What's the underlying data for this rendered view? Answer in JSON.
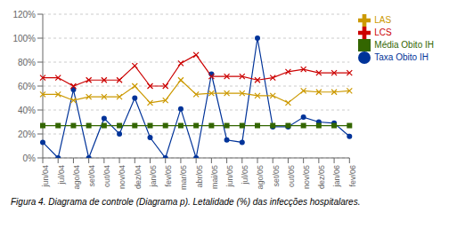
{
  "chart_data": {
    "type": "line",
    "caption": "Figura 4. Diagrama de controle (Diagrama p). Letalidade (%) das infecções hospitalares.",
    "categories": [
      "jun/04",
      "jul/04",
      "ago/04",
      "set/04",
      "out/04",
      "nov/04",
      "dez/04",
      "jan/05",
      "fev/05",
      "mar/05",
      "abr/05",
      "mai/05",
      "jun/05",
      "jul/05",
      "ago/05",
      "set/05",
      "out/05",
      "nov/05",
      "dez/05",
      "jan/06",
      "fev/06"
    ],
    "series": [
      {
        "name": "Taxa Obito IH",
        "color": "#003399",
        "marker": "circle",
        "values": [
          0.13,
          0.0,
          0.57,
          0.0,
          0.33,
          0.2,
          0.5,
          0.17,
          0.0,
          0.41,
          0.0,
          0.7,
          0.15,
          0.13,
          1.0,
          0.26,
          0.26,
          0.34,
          0.3,
          0.29,
          0.18
        ]
      },
      {
        "name": "Média Obito IH",
        "color": "#336600",
        "marker": "square",
        "values": [
          0.27,
          0.27,
          0.27,
          0.27,
          0.27,
          0.27,
          0.27,
          0.27,
          0.27,
          0.27,
          0.27,
          0.27,
          0.27,
          0.27,
          0.27,
          0.27,
          0.27,
          0.27,
          0.27,
          0.27,
          0.27
        ]
      },
      {
        "name": "LAS",
        "color": "#CC9900",
        "marker": "cross",
        "values": [
          0.53,
          0.53,
          0.48,
          0.51,
          0.51,
          0.51,
          0.6,
          0.46,
          0.48,
          0.65,
          0.53,
          0.54,
          0.54,
          0.54,
          0.52,
          0.52,
          0.46,
          0.56,
          0.55,
          0.55,
          0.56
        ]
      },
      {
        "name": "LCS",
        "color": "#CC0000",
        "marker": "cross",
        "values": [
          0.67,
          0.67,
          0.6,
          0.65,
          0.65,
          0.65,
          0.77,
          0.6,
          0.6,
          0.79,
          0.86,
          0.68,
          0.68,
          0.68,
          0.65,
          0.67,
          0.72,
          0.74,
          0.71,
          0.71,
          0.71
        ]
      }
    ],
    "ylim": [
      0.0,
      1.2
    ],
    "yticks": [
      {
        "value": 0.0,
        "label": "0%"
      },
      {
        "value": 0.2,
        "label": "20%"
      },
      {
        "value": 0.4,
        "label": "40%"
      },
      {
        "value": 0.6,
        "label": "60%"
      },
      {
        "value": 0.8,
        "label": "80%"
      },
      {
        "value": 1.0,
        "label": "100%"
      },
      {
        "value": 1.2,
        "label": "120%"
      }
    ],
    "grid": "y",
    "legend": "right"
  }
}
